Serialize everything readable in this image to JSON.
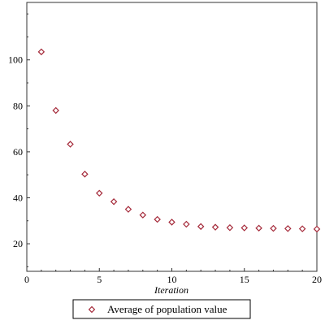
{
  "chart_data": {
    "type": "scatter",
    "xlabel": "Iteration",
    "ylabel": "",
    "xlim": [
      0,
      20
    ],
    "ylim": [
      8,
      125
    ],
    "xticks": [
      0,
      5,
      10,
      15,
      20
    ],
    "yticks": [
      20,
      40,
      60,
      80,
      100
    ],
    "grid": false,
    "legend_position": "bottom",
    "series": [
      {
        "name": "Average of population value",
        "color": "#a52a3a",
        "marker": "diamond",
        "x": [
          1,
          2,
          3,
          4,
          5,
          6,
          7,
          8,
          9,
          10,
          11,
          12,
          13,
          14,
          15,
          16,
          17,
          18,
          19,
          20
        ],
        "y": [
          103.5,
          78,
          63.3,
          50.3,
          42,
          38.3,
          35,
          32.5,
          30.6,
          29.4,
          28.5,
          27.5,
          27.2,
          27,
          26.9,
          26.8,
          26.7,
          26.6,
          26.5,
          26.4
        ]
      }
    ]
  }
}
